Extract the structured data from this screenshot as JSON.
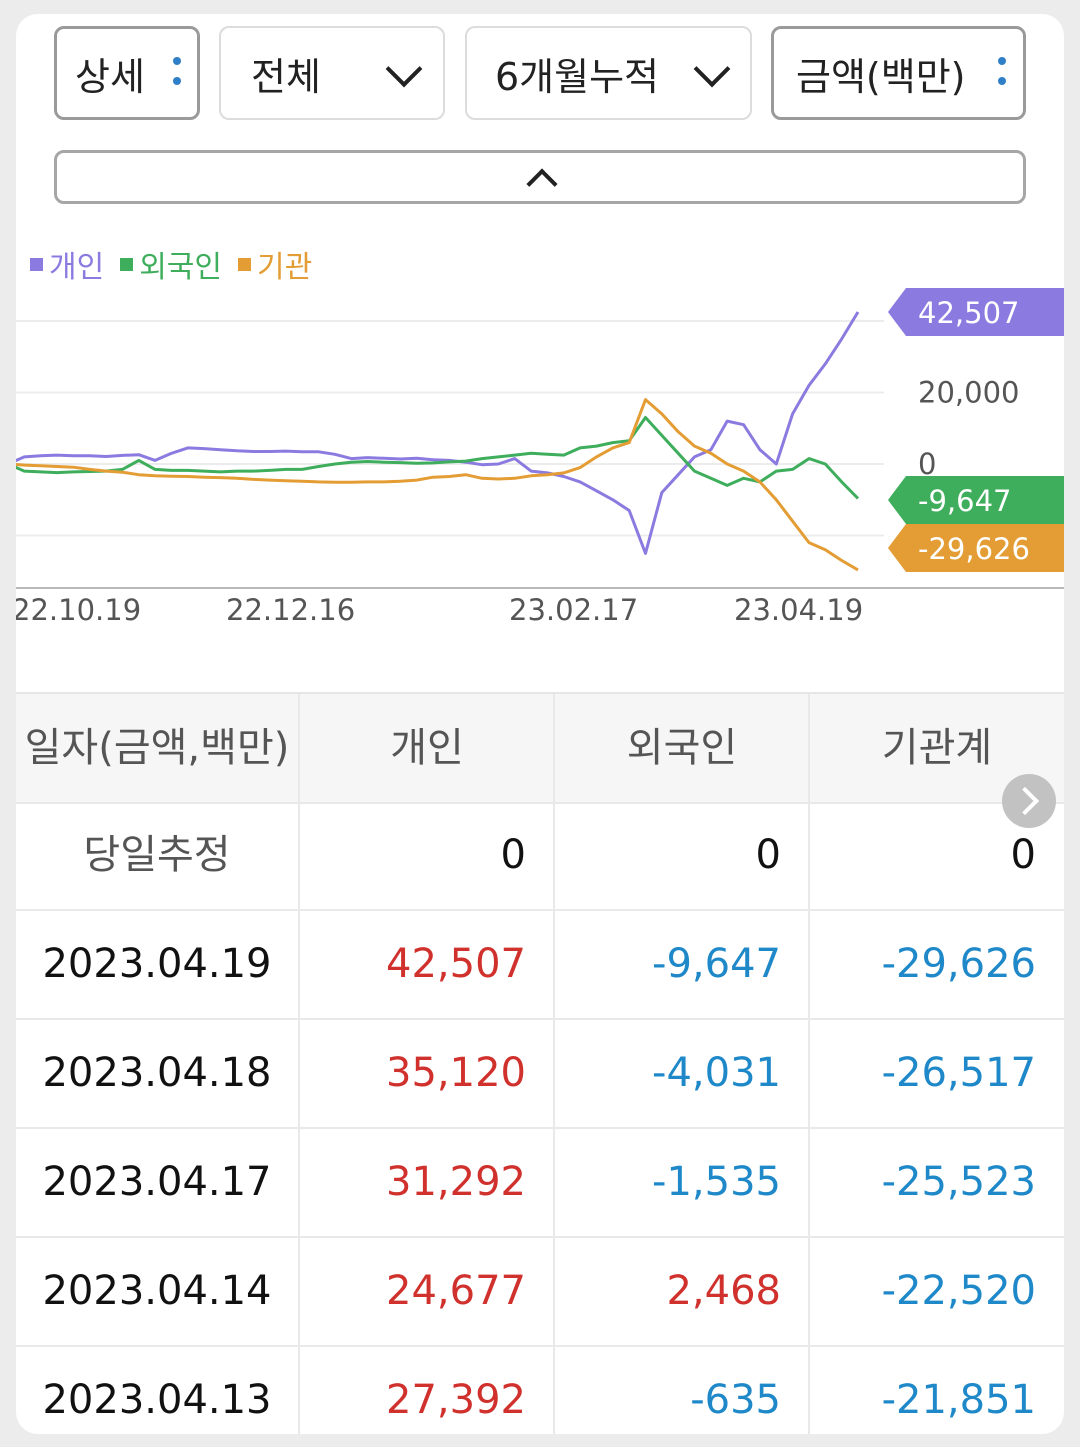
{
  "filters": {
    "detail_label": "상세",
    "scope_label": "전체",
    "period_label": "6개월누적",
    "unit_label": "금액(백만)"
  },
  "legend": [
    {
      "label": "개인",
      "color": "#8b7be0"
    },
    {
      "label": "외국인",
      "color": "#3fae5c"
    },
    {
      "label": "기관",
      "color": "#e39d34"
    }
  ],
  "chart_data": {
    "type": "line",
    "x_ticks": [
      "22.10.19",
      "22.12.16",
      "23.02.17",
      "23.04.19"
    ],
    "y_ticks": [
      20000,
      0
    ],
    "y_tick_labels": [
      "20,000",
      "0"
    ],
    "ylim": [
      -30000,
      40000
    ],
    "grid": true,
    "series": [
      {
        "name": "개인",
        "color": "#8b7be0",
        "last_label": "42,507",
        "values": [
          0,
          2000,
          2300,
          2500,
          2300,
          2300,
          2100,
          2400,
          2600,
          1000,
          3000,
          4500,
          4300,
          4000,
          3700,
          3500,
          3500,
          3600,
          3400,
          3400,
          2700,
          1500,
          1800,
          1600,
          1400,
          1600,
          1200,
          1000,
          500,
          -200,
          0,
          1500,
          -2000,
          -2500,
          -3500,
          -5000,
          -7500,
          -10000,
          -13000,
          -25000,
          -8000,
          -3000,
          2000,
          4000,
          12000,
          11000,
          4000,
          0,
          14000,
          22000,
          28000,
          35000,
          42507
        ]
      },
      {
        "name": "외국인",
        "color": "#3fae5c",
        "last_label": "-9,647",
        "values": [
          0,
          -2000,
          -2200,
          -2400,
          -2200,
          -2100,
          -2000,
          -1500,
          1000,
          -1500,
          -1800,
          -1800,
          -2000,
          -2200,
          -2000,
          -2000,
          -1800,
          -1500,
          -1500,
          -700,
          0,
          500,
          700,
          500,
          400,
          200,
          300,
          600,
          800,
          1500,
          2000,
          2500,
          3000,
          2700,
          2500,
          4500,
          5000,
          6000,
          6500,
          13000,
          8000,
          3000,
          -2000,
          -4000,
          -6000,
          -4000,
          -5000,
          -2000,
          -1500,
          1500,
          0,
          -5000,
          -9647
        ]
      },
      {
        "name": "기관",
        "color": "#e39d34",
        "last_label": "-29,626",
        "values": [
          0,
          -300,
          -500,
          -700,
          -900,
          -1500,
          -2000,
          -2300,
          -3000,
          -3300,
          -3400,
          -3500,
          -3700,
          -3800,
          -4000,
          -4300,
          -4500,
          -4700,
          -4800,
          -5000,
          -5100,
          -5100,
          -5000,
          -5000,
          -4800,
          -4500,
          -3700,
          -3500,
          -3000,
          -4000,
          -4200,
          -4000,
          -3300,
          -3000,
          -2500,
          -1000,
          2000,
          4500,
          6000,
          18000,
          14000,
          9000,
          5000,
          3000,
          0,
          -2000,
          -5000,
          -10000,
          -16000,
          -22000,
          -24000,
          -27000,
          -29626
        ]
      }
    ]
  },
  "table": {
    "headers": [
      "일자(금액,백만)",
      "개인",
      "외국인",
      "기관계"
    ],
    "rows": [
      {
        "date": "당일추정",
        "individual": "0",
        "foreign": "0",
        "institution": "0"
      },
      {
        "date": "2023.04.19",
        "individual": "42,507",
        "foreign": "-9,647",
        "institution": "-29,626"
      },
      {
        "date": "2023.04.18",
        "individual": "35,120",
        "foreign": "-4,031",
        "institution": "-26,517"
      },
      {
        "date": "2023.04.17",
        "individual": "31,292",
        "foreign": "-1,535",
        "institution": "-25,523"
      },
      {
        "date": "2023.04.14",
        "individual": "24,677",
        "foreign": "2,468",
        "institution": "-22,520"
      },
      {
        "date": "2023.04.13",
        "individual": "27,392",
        "foreign": "-635",
        "institution": "-21,851"
      }
    ]
  }
}
